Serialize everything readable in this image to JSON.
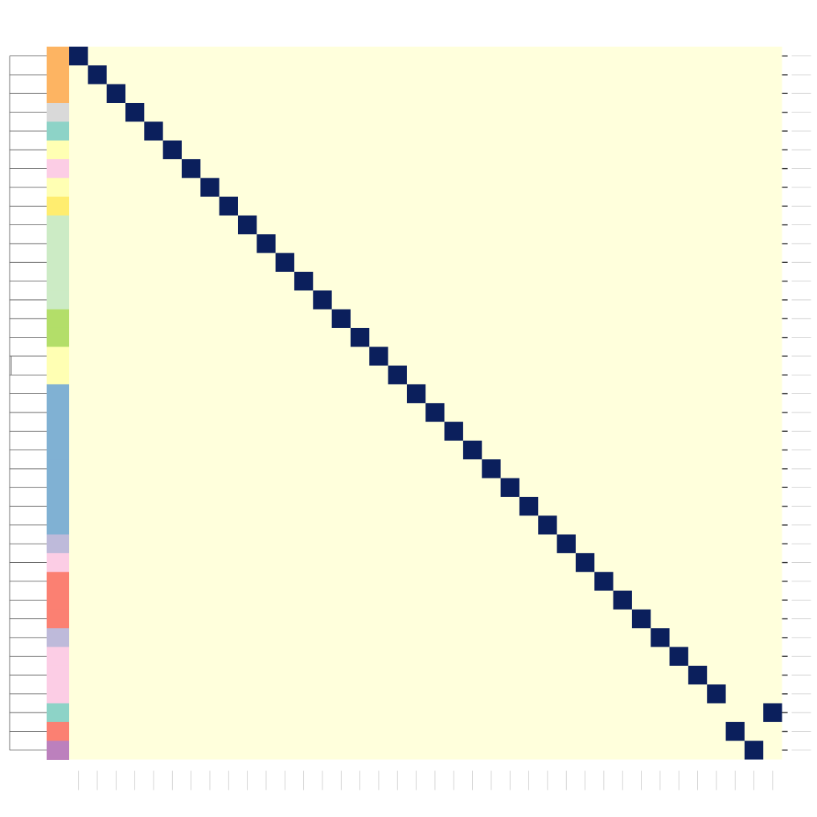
{
  "chart_data": {
    "type": "heatmap",
    "title": "",
    "xlabel": "",
    "ylabel": "",
    "n": 38,
    "background_color": "#ffffdc",
    "highlight_color": "#0b1f5c",
    "matrix_note_free": true,
    "highlight_cells": [
      [
        0,
        0
      ],
      [
        1,
        1
      ],
      [
        2,
        2
      ],
      [
        3,
        3
      ],
      [
        4,
        4
      ],
      [
        5,
        5
      ],
      [
        6,
        6
      ],
      [
        7,
        7
      ],
      [
        8,
        8
      ],
      [
        9,
        9
      ],
      [
        10,
        10
      ],
      [
        11,
        11
      ],
      [
        12,
        12
      ],
      [
        13,
        13
      ],
      [
        14,
        14
      ],
      [
        15,
        15
      ],
      [
        16,
        16
      ],
      [
        17,
        17
      ],
      [
        18,
        18
      ],
      [
        19,
        19
      ],
      [
        20,
        20
      ],
      [
        21,
        21
      ],
      [
        22,
        22
      ],
      [
        23,
        23
      ],
      [
        24,
        24
      ],
      [
        25,
        25
      ],
      [
        26,
        26
      ],
      [
        27,
        27
      ],
      [
        28,
        28
      ],
      [
        29,
        29
      ],
      [
        30,
        30
      ],
      [
        31,
        31
      ],
      [
        32,
        32
      ],
      [
        33,
        33
      ],
      [
        34,
        34
      ],
      [
        35,
        37
      ],
      [
        36,
        35
      ],
      [
        37,
        36
      ]
    ],
    "row_group_colors": [
      "#fdb462",
      "#fdb462",
      "#fdb462",
      "#d9d9d9",
      "#8dd3c7",
      "#ffffb3",
      "#fccde5",
      "#ffffb3",
      "#ffed6f",
      "#ccebc5",
      "#ccebc5",
      "#ccebc5",
      "#ccebc5",
      "#ccebc5",
      "#b3de69",
      "#b3de69",
      "#ffffb3",
      "#ffffb3",
      "#80b1d3",
      "#80b1d3",
      "#80b1d3",
      "#80b1d3",
      "#80b1d3",
      "#80b1d3",
      "#80b1d3",
      "#80b1d3",
      "#bebada",
      "#fccde5",
      "#fb8072",
      "#fb8072",
      "#fb8072",
      "#bebada",
      "#fccde5",
      "#fccde5",
      "#fccde5",
      "#8dd3c7",
      "#fb8072",
      "#bc80bd"
    ],
    "dendrogram": "left",
    "grid": false,
    "legend": "none"
  }
}
